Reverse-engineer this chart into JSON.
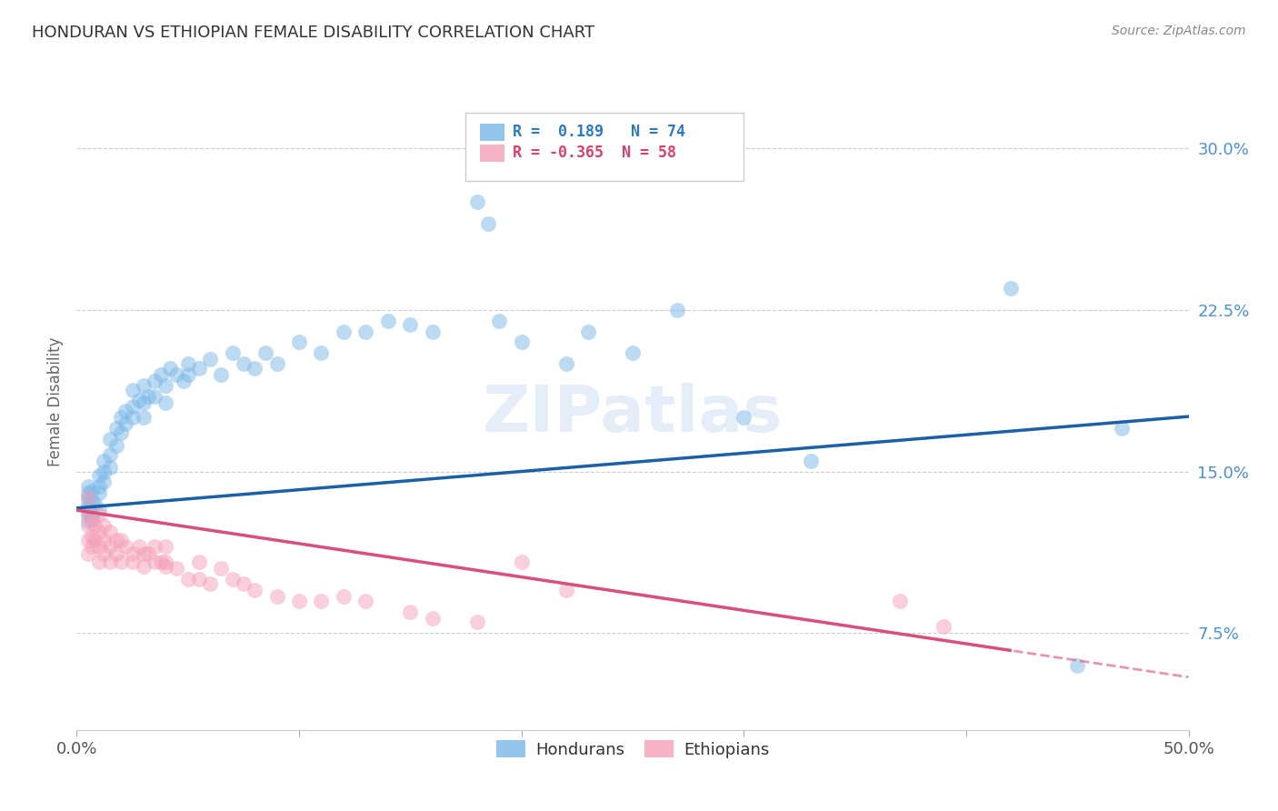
{
  "title": "HONDURAN VS ETHIOPIAN FEMALE DISABILITY CORRELATION CHART",
  "source": "Source: ZipAtlas.com",
  "ylabel": "Female Disability",
  "ytick_labels": [
    "7.5%",
    "15.0%",
    "22.5%",
    "30.0%"
  ],
  "ytick_values": [
    0.075,
    0.15,
    0.225,
    0.3
  ],
  "xlim": [
    0.0,
    0.5
  ],
  "ylim": [
    0.03,
    0.335
  ],
  "legend_blue_r": "R =  0.189",
  "legend_blue_n": "N = 74",
  "legend_pink_r": "R = -0.365",
  "legend_pink_n": "N = 58",
  "blue_color": "#7ab8e8",
  "pink_color": "#f4a0b8",
  "line_blue": "#1a5fa8",
  "line_pink": "#d94f7a",
  "watermark_text": "ZIPatlas",
  "hondurans_scatter": [
    [
      0.005,
      0.135
    ],
    [
      0.005,
      0.13
    ],
    [
      0.005,
      0.138
    ],
    [
      0.005,
      0.14
    ],
    [
      0.005,
      0.133
    ],
    [
      0.005,
      0.127
    ],
    [
      0.005,
      0.143
    ],
    [
      0.007,
      0.136
    ],
    [
      0.007,
      0.13
    ],
    [
      0.007,
      0.141
    ],
    [
      0.007,
      0.128
    ],
    [
      0.008,
      0.135
    ],
    [
      0.01,
      0.14
    ],
    [
      0.01,
      0.148
    ],
    [
      0.01,
      0.132
    ],
    [
      0.01,
      0.143
    ],
    [
      0.012,
      0.15
    ],
    [
      0.012,
      0.155
    ],
    [
      0.012,
      0.145
    ],
    [
      0.015,
      0.158
    ],
    [
      0.015,
      0.165
    ],
    [
      0.015,
      0.152
    ],
    [
      0.018,
      0.17
    ],
    [
      0.018,
      0.162
    ],
    [
      0.02,
      0.175
    ],
    [
      0.02,
      0.168
    ],
    [
      0.022,
      0.178
    ],
    [
      0.022,
      0.172
    ],
    [
      0.025,
      0.18
    ],
    [
      0.025,
      0.188
    ],
    [
      0.025,
      0.175
    ],
    [
      0.028,
      0.183
    ],
    [
      0.03,
      0.19
    ],
    [
      0.03,
      0.182
    ],
    [
      0.03,
      0.175
    ],
    [
      0.032,
      0.185
    ],
    [
      0.035,
      0.192
    ],
    [
      0.035,
      0.185
    ],
    [
      0.038,
      0.195
    ],
    [
      0.04,
      0.19
    ],
    [
      0.04,
      0.182
    ],
    [
      0.042,
      0.198
    ],
    [
      0.045,
      0.195
    ],
    [
      0.048,
      0.192
    ],
    [
      0.05,
      0.2
    ],
    [
      0.05,
      0.195
    ],
    [
      0.055,
      0.198
    ],
    [
      0.06,
      0.202
    ],
    [
      0.065,
      0.195
    ],
    [
      0.07,
      0.205
    ],
    [
      0.075,
      0.2
    ],
    [
      0.08,
      0.198
    ],
    [
      0.085,
      0.205
    ],
    [
      0.09,
      0.2
    ],
    [
      0.1,
      0.21
    ],
    [
      0.11,
      0.205
    ],
    [
      0.12,
      0.215
    ],
    [
      0.13,
      0.215
    ],
    [
      0.14,
      0.22
    ],
    [
      0.15,
      0.218
    ],
    [
      0.16,
      0.215
    ],
    [
      0.18,
      0.275
    ],
    [
      0.185,
      0.265
    ],
    [
      0.19,
      0.22
    ],
    [
      0.2,
      0.21
    ],
    [
      0.22,
      0.2
    ],
    [
      0.23,
      0.215
    ],
    [
      0.25,
      0.205
    ],
    [
      0.27,
      0.225
    ],
    [
      0.3,
      0.175
    ],
    [
      0.33,
      0.155
    ],
    [
      0.42,
      0.235
    ],
    [
      0.45,
      0.06
    ],
    [
      0.47,
      0.17
    ]
  ],
  "ethiopians_scatter": [
    [
      0.005,
      0.13
    ],
    [
      0.005,
      0.125
    ],
    [
      0.005,
      0.118
    ],
    [
      0.005,
      0.112
    ],
    [
      0.005,
      0.138
    ],
    [
      0.007,
      0.128
    ],
    [
      0.007,
      0.12
    ],
    [
      0.007,
      0.115
    ],
    [
      0.008,
      0.125
    ],
    [
      0.008,
      0.118
    ],
    [
      0.01,
      0.13
    ],
    [
      0.01,
      0.122
    ],
    [
      0.01,
      0.115
    ],
    [
      0.01,
      0.108
    ],
    [
      0.012,
      0.125
    ],
    [
      0.012,
      0.118
    ],
    [
      0.012,
      0.112
    ],
    [
      0.015,
      0.122
    ],
    [
      0.015,
      0.115
    ],
    [
      0.015,
      0.108
    ],
    [
      0.018,
      0.118
    ],
    [
      0.018,
      0.112
    ],
    [
      0.02,
      0.118
    ],
    [
      0.02,
      0.108
    ],
    [
      0.022,
      0.115
    ],
    [
      0.025,
      0.112
    ],
    [
      0.025,
      0.108
    ],
    [
      0.028,
      0.115
    ],
    [
      0.03,
      0.112
    ],
    [
      0.03,
      0.106
    ],
    [
      0.032,
      0.112
    ],
    [
      0.035,
      0.108
    ],
    [
      0.035,
      0.115
    ],
    [
      0.038,
      0.108
    ],
    [
      0.04,
      0.106
    ],
    [
      0.04,
      0.115
    ],
    [
      0.04,
      0.108
    ],
    [
      0.045,
      0.105
    ],
    [
      0.05,
      0.1
    ],
    [
      0.055,
      0.1
    ],
    [
      0.055,
      0.108
    ],
    [
      0.06,
      0.098
    ],
    [
      0.065,
      0.105
    ],
    [
      0.07,
      0.1
    ],
    [
      0.075,
      0.098
    ],
    [
      0.08,
      0.095
    ],
    [
      0.09,
      0.092
    ],
    [
      0.1,
      0.09
    ],
    [
      0.11,
      0.09
    ],
    [
      0.12,
      0.092
    ],
    [
      0.13,
      0.09
    ],
    [
      0.15,
      0.085
    ],
    [
      0.16,
      0.082
    ],
    [
      0.18,
      0.08
    ],
    [
      0.2,
      0.108
    ],
    [
      0.22,
      0.095
    ],
    [
      0.37,
      0.09
    ],
    [
      0.39,
      0.078
    ]
  ]
}
